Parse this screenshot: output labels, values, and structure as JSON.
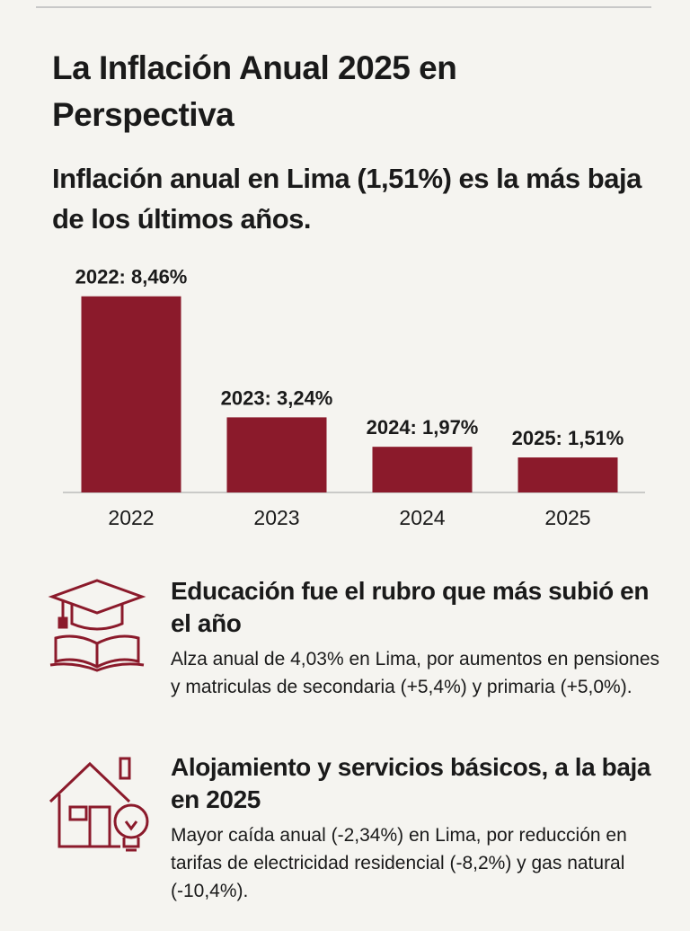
{
  "title": "La Inflación Anual 2025 en Perspectiva",
  "subtitle": "Inflación anual en Lima (1,51%) es la más baja de los últimos años.",
  "chart_data": {
    "type": "bar",
    "categories": [
      "2022",
      "2023",
      "2024",
      "2025"
    ],
    "values": [
      8.46,
      3.24,
      1.97,
      1.51
    ],
    "value_labels": [
      "2022: 8,46%",
      "2023: 3,24%",
      "2024: 1,97%",
      "2025: 1,51%"
    ],
    "color": "#8b1a2b"
  },
  "sections": [
    {
      "heading": "Educación fue el rubro que más subió en el año",
      "body": "Alza anual de 4,03% en Lima, por aumentos en pensiones y matriculas de secondaria (+5,4%) y primaria (+5,0%)."
    },
    {
      "heading": "Alojamiento y servicios básicos, a la baja en 2025",
      "body": "Mayor caída anual (-2,34%) en Lima, por reducción en tarifas de electricidad residencial (-8,2%) y gas natural (-10,4%)."
    }
  ]
}
